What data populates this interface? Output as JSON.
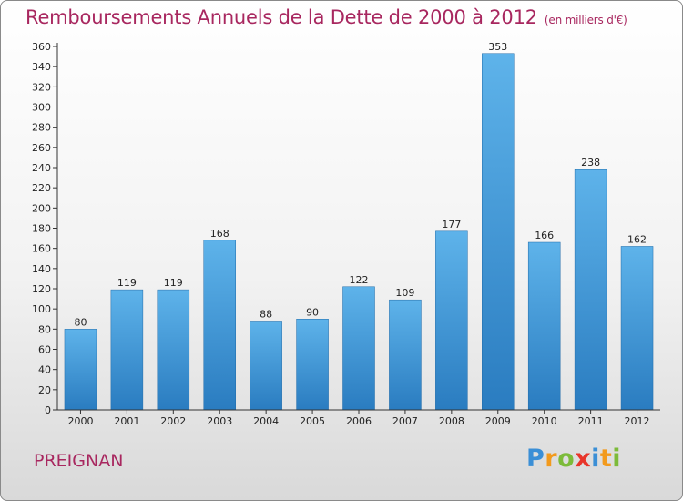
{
  "title": "Remboursements Annuels de la Dette de 2000 à 2012",
  "unit_note": "(en milliers d'€)",
  "commune": "PREIGNAN",
  "logo": {
    "text": "Proxiti",
    "letter_colors": [
      "#3b8fd6",
      "#f29a1d",
      "#7cbb3a",
      "#e8352a",
      "#3b8fd6",
      "#f29a1d",
      "#7cbb3a"
    ]
  },
  "colors": {
    "title": "#a8275f",
    "bar_top": "#5eb3ea",
    "bar_bottom": "#2a7cc0",
    "axis": "#333333",
    "grid": "#cccccc"
  },
  "chart_data": {
    "type": "bar",
    "title": "Remboursements Annuels de la Dette de 2000 à 2012",
    "xlabel": "",
    "ylabel": "",
    "categories": [
      "2000",
      "2001",
      "2002",
      "2003",
      "2004",
      "2005",
      "2006",
      "2007",
      "2008",
      "2009",
      "2010",
      "2011",
      "2012"
    ],
    "values": [
      80,
      119,
      119,
      168,
      88,
      90,
      122,
      109,
      177,
      353,
      166,
      238,
      162
    ],
    "ylim": [
      0,
      360
    ],
    "ytick_step": 20,
    "grid": false,
    "data_labels": true
  }
}
